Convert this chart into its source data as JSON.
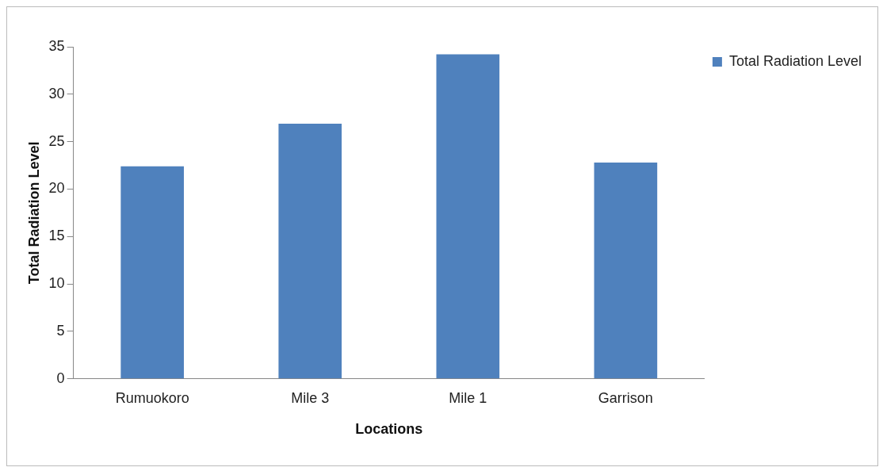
{
  "chart_data": {
    "type": "bar",
    "xlabel": "Locations",
    "ylabel": "Total Radiation Level",
    "categories": [
      "Rumuokoro",
      "Mile 3",
      "Mile 1",
      "Garrison"
    ],
    "series": [
      {
        "name": "Total Radiation Level",
        "color": "#4f81bd",
        "values": [
          22.4,
          26.9,
          34.2,
          22.8
        ]
      }
    ],
    "ylim": [
      0,
      35
    ],
    "yticks": [
      0,
      5,
      10,
      15,
      20,
      25,
      30,
      35
    ],
    "grid": false,
    "legend": "top right"
  }
}
